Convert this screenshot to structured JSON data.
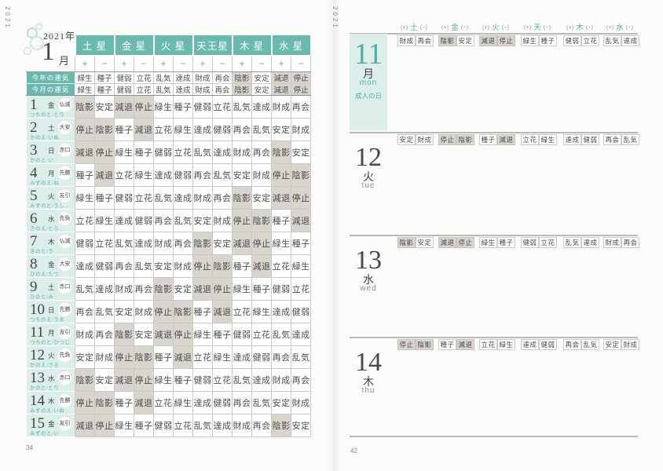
{
  "negative_fortunes": [
    "陰影",
    "減退",
    "停止"
  ],
  "colors": {
    "teal": "#69b9af",
    "teal_text": "#4fb0a5",
    "light_teal": "#dceeea",
    "negative_cell_gray": "#d8d4ce"
  },
  "left_page": {
    "corner_year": "2021",
    "page_number": "34",
    "title": {
      "year": "2021",
      "year_unit": "年",
      "month": "1",
      "month_unit": "月"
    },
    "planets": [
      "土 星",
      "金 星",
      "火 星",
      "天王星",
      "木 星",
      "水 星"
    ],
    "plus": "+",
    "minus": "−",
    "summary_rows": [
      {
        "label": "今年の運気",
        "values": [
          "緑生",
          "種子",
          "健弱",
          "立花",
          "乱気",
          "達成",
          "財成",
          "再会",
          "陰影",
          "安定",
          "減退",
          "停止"
        ]
      },
      {
        "label": "今月の運気",
        "values": [
          "緑生",
          "種子",
          "健弱",
          "立花",
          "乱気",
          "達成",
          "財成",
          "再会",
          "陰影",
          "安定",
          "減退",
          "停止"
        ]
      }
    ],
    "date_rows": [
      {
        "day": "1",
        "weekday": "金",
        "rokuyo": "仏滅",
        "eto": "つちのと/とり",
        "values": [
          "陰影",
          "安定",
          "減退",
          "停止",
          "緑生",
          "種子",
          "健弱",
          "立花",
          "乱気",
          "達成",
          "財成",
          "再会"
        ]
      },
      {
        "day": "2",
        "weekday": "土",
        "rokuyo": "大安",
        "eto": "かのえ/いぬ",
        "values": [
          "停止",
          "陰影",
          "種子",
          "減退",
          "立花",
          "緑生",
          "達成",
          "健弱",
          "再会",
          "乱気",
          "安定",
          "財成"
        ]
      },
      {
        "day": "3",
        "weekday": "日",
        "rokuyo": "赤口",
        "eto": "かのと/い",
        "values": [
          "減退",
          "停止",
          "緑生",
          "種子",
          "健弱",
          "立花",
          "乱気",
          "達成",
          "財成",
          "再会",
          "陰影",
          "安定"
        ]
      },
      {
        "day": "4",
        "weekday": "月",
        "rokuyo": "先勝",
        "eto": "みずのえ/ね",
        "values": [
          "種子",
          "減退",
          "立花",
          "緑生",
          "達成",
          "健弱",
          "再会",
          "乱気",
          "安定",
          "財成",
          "停止",
          "陰影"
        ]
      },
      {
        "day": "5",
        "weekday": "火",
        "rokuyo": "友引",
        "eto": "みずのと/うし",
        "values": [
          "緑生",
          "種子",
          "健弱",
          "立花",
          "乱気",
          "達成",
          "財成",
          "再会",
          "陰影",
          "安定",
          "減退",
          "停止"
        ]
      },
      {
        "day": "6",
        "weekday": "水",
        "rokuyo": "先負",
        "eto": "きのえ/とら",
        "values": [
          "立花",
          "緑生",
          "達成",
          "健弱",
          "再会",
          "乱気",
          "安定",
          "財成",
          "停止",
          "陰影",
          "種子",
          "減退"
        ]
      },
      {
        "day": "7",
        "weekday": "木",
        "rokuyo": "仏滅",
        "eto": "きのと/う",
        "values": [
          "健弱",
          "立花",
          "乱気",
          "達成",
          "財成",
          "再会",
          "陰影",
          "安定",
          "減退",
          "停止",
          "緑生",
          "種子"
        ]
      },
      {
        "day": "8",
        "weekday": "金",
        "rokuyo": "大安",
        "eto": "ひのえ/たつ",
        "values": [
          "達成",
          "健弱",
          "再会",
          "乱気",
          "安定",
          "財成",
          "停止",
          "陰影",
          "種子",
          "減退",
          "立花",
          "緑生"
        ]
      },
      {
        "day": "9",
        "weekday": "土",
        "rokuyo": "赤口",
        "eto": "ひのと/み",
        "values": [
          "乱気",
          "達成",
          "財成",
          "再会",
          "陰影",
          "安定",
          "減退",
          "停止",
          "緑生",
          "種子",
          "健弱",
          "立花"
        ]
      },
      {
        "day": "10",
        "weekday": "日",
        "rokuyo": "先勝",
        "eto": "つちのえ/うま",
        "values": [
          "再会",
          "乱気",
          "安定",
          "財成",
          "停止",
          "陰影",
          "種子",
          "減退",
          "立花",
          "緑生",
          "達成",
          "健弱"
        ]
      },
      {
        "day": "11",
        "weekday": "月",
        "rokuyo": "友引",
        "eto": "つちのと/ひつじ",
        "values": [
          "財成",
          "再会",
          "陰影",
          "安定",
          "減退",
          "停止",
          "緑生",
          "種子",
          "健弱",
          "立花",
          "乱気",
          "達成"
        ]
      },
      {
        "day": "12",
        "weekday": "火",
        "rokuyo": "先負",
        "eto": "かのえ/さる",
        "values": [
          "安定",
          "財成",
          "停止",
          "陰影",
          "種子",
          "減退",
          "立花",
          "緑生",
          "達成",
          "健弱",
          "再会",
          "乱気"
        ]
      },
      {
        "day": "13",
        "weekday": "水",
        "rokuyo": "赤口",
        "eto": "かのと/とり",
        "values": [
          "陰影",
          "安定",
          "減退",
          "停止",
          "緑生",
          "種子",
          "健弱",
          "立花",
          "乱気",
          "達成",
          "財成",
          "再会"
        ]
      },
      {
        "day": "14",
        "weekday": "木",
        "rokuyo": "先勝",
        "eto": "みずのえ/いぬ",
        "values": [
          "停止",
          "陰影",
          "種子",
          "減退",
          "立花",
          "緑生",
          "達成",
          "健弱",
          "再会",
          "乱気",
          "安定",
          "財成"
        ]
      },
      {
        "day": "15",
        "weekday": "金",
        "rokuyo": "友引",
        "eto": "みずのと/い",
        "values": [
          "減退",
          "停止",
          "緑生",
          "種子",
          "健弱",
          "立花",
          "乱気",
          "達成",
          "財成",
          "再会",
          "陰影",
          "安定"
        ]
      }
    ]
  },
  "right_page": {
    "corner_year": "2021",
    "page_number": "42",
    "planet_headers": [
      {
        "plus": "(+)",
        "name": "土",
        "minus": "(−)"
      },
      {
        "plus": "(+)",
        "name": "金",
        "minus": "(−)"
      },
      {
        "plus": "(+)",
        "name": "火",
        "minus": "(−)"
      },
      {
        "plus": "(+)",
        "name": "天",
        "minus": "(−)"
      },
      {
        "plus": "(+)",
        "name": "木",
        "minus": "(−)"
      },
      {
        "plus": "(+)",
        "name": "水",
        "minus": "(−)"
      }
    ],
    "days": [
      {
        "day": "11",
        "weekday": "月",
        "weekday_en": "mon",
        "holiday": "成人の日",
        "highlighted": true,
        "pairs": [
          [
            "財成",
            "再会"
          ],
          [
            "陰影",
            "安定"
          ],
          [
            "減退",
            "停止"
          ],
          [
            "緑生",
            "種子"
          ],
          [
            "健弱",
            "立花"
          ],
          [
            "乱気",
            "達成"
          ]
        ]
      },
      {
        "day": "12",
        "weekday": "火",
        "weekday_en": "tue",
        "holiday": "",
        "highlighted": false,
        "pairs": [
          [
            "安定",
            "財成"
          ],
          [
            "停止",
            "陰影"
          ],
          [
            "種子",
            "減退"
          ],
          [
            "立花",
            "緑生"
          ],
          [
            "達成",
            "健弱"
          ],
          [
            "再会",
            "乱気"
          ]
        ]
      },
      {
        "day": "13",
        "weekday": "水",
        "weekday_en": "wed",
        "holiday": "",
        "highlighted": false,
        "pairs": [
          [
            "陰影",
            "安定"
          ],
          [
            "減退",
            "停止"
          ],
          [
            "緑生",
            "種子"
          ],
          [
            "健弱",
            "立花"
          ],
          [
            "乱気",
            "達成"
          ],
          [
            "財成",
            "再会"
          ]
        ]
      },
      {
        "day": "14",
        "weekday": "木",
        "weekday_en": "thu",
        "holiday": "",
        "highlighted": false,
        "pairs": [
          [
            "停止",
            "陰影"
          ],
          [
            "種子",
            "減退"
          ],
          [
            "立花",
            "緑生"
          ],
          [
            "達成",
            "健弱"
          ],
          [
            "再会",
            "乱気"
          ],
          [
            "安定",
            "財成"
          ]
        ]
      }
    ]
  }
}
